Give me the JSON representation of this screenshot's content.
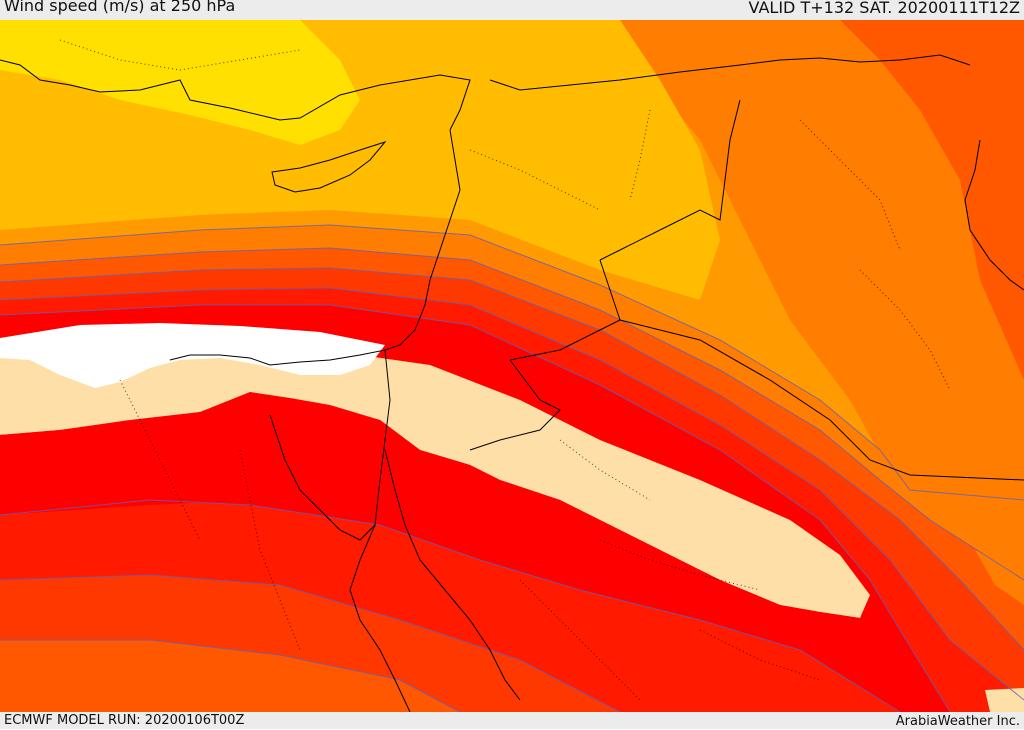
{
  "header": {
    "title": "Wind speed (m/s) at 250 hPa",
    "valid_time": "VALID T+132 SAT. 20200111T12Z"
  },
  "footer": {
    "model_run": "ECMWF MODEL RUN: 20200106T00Z",
    "credit": "ArabiaWeather Inc."
  },
  "colors": {
    "band_yellow": "#ffe000",
    "band_gold": "#ffbc00",
    "band_orange": "#ff9a00",
    "band_dark_orange": "#ff7d00",
    "band_red_orange": "#ff5800",
    "band_orange_red": "#ff3800",
    "band_red": "#ff1a00",
    "band_core_red": "#ff0000",
    "band_peak": "#ffdfa8",
    "band_max": "#ffffff",
    "coastline": "#000000",
    "contour_line": "#6060c0"
  }
}
